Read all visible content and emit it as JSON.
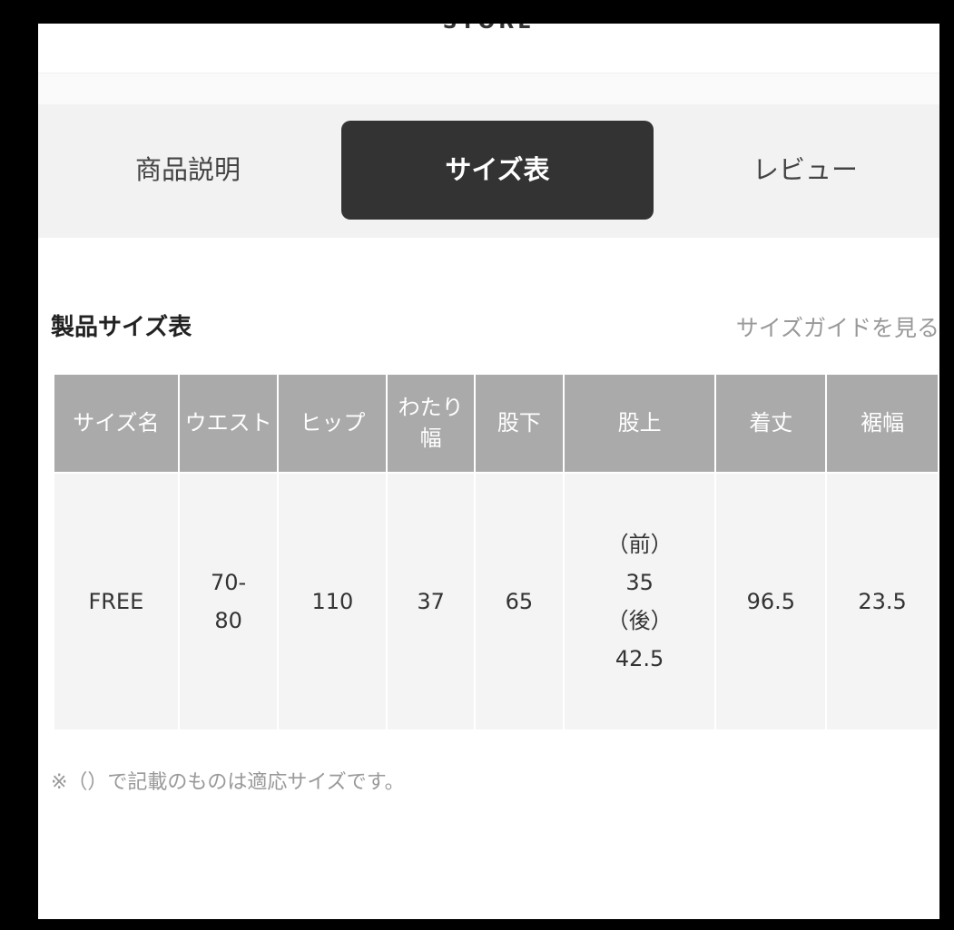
{
  "header": {
    "store": "STORE"
  },
  "tabs": [
    "商品説明",
    "サイズ表",
    "レビュー"
  ],
  "active_tab": "サイズ表",
  "section": {
    "title": "製品サイズ表",
    "guide_link": "サイズガイドを見る"
  },
  "table": {
    "headers": [
      "サイズ名",
      "ウエスト",
      "ヒップ",
      "わたり幅",
      "股下",
      "股上",
      "着丈",
      "裾幅"
    ],
    "rows": [
      [
        "FREE",
        "70-80",
        "110",
        "37",
        "65",
        "（前）35（後）42.5",
        "96.5",
        "23.5"
      ]
    ],
    "cells": {
      "waist_1": "70-",
      "waist_2": "80",
      "rise_1": "（前）",
      "rise_2": "35",
      "rise_3": "（後）",
      "rise_4": "42.5"
    }
  },
  "note": "※（）で記載のものは適応サイズです。"
}
